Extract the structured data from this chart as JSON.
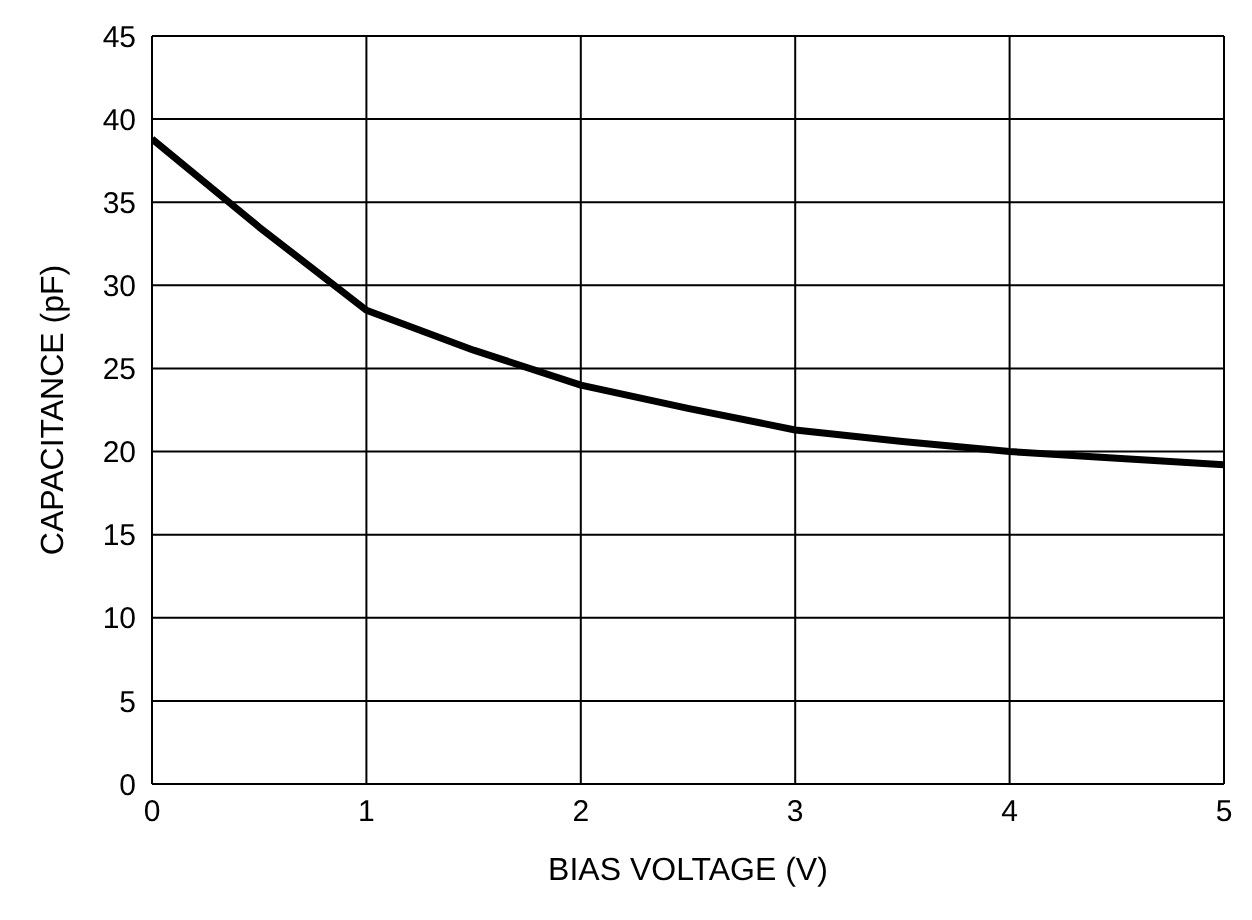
{
  "chart_data": {
    "type": "line",
    "xlabel": "BIAS VOLTAGE (V)",
    "ylabel": "CAPACITANCE (pF)",
    "x": [
      0,
      0.5,
      1,
      1.5,
      2,
      2.5,
      3,
      3.5,
      4,
      4.5,
      5
    ],
    "series": [
      {
        "color": "#000000",
        "values": [
          38.8,
          33.5,
          28.5,
          26.1,
          24.0,
          22.6,
          21.3,
          20.6,
          20.0,
          19.6,
          19.2
        ]
      }
    ],
    "xlim": [
      0,
      5
    ],
    "xticks": [
      0,
      1,
      2,
      3,
      4,
      5
    ],
    "ylim": [
      0,
      45
    ],
    "yticks": [
      0,
      5,
      10,
      15,
      20,
      25,
      30,
      35,
      40,
      45
    ],
    "grid": true,
    "marker": "none",
    "line_style": "solid"
  }
}
